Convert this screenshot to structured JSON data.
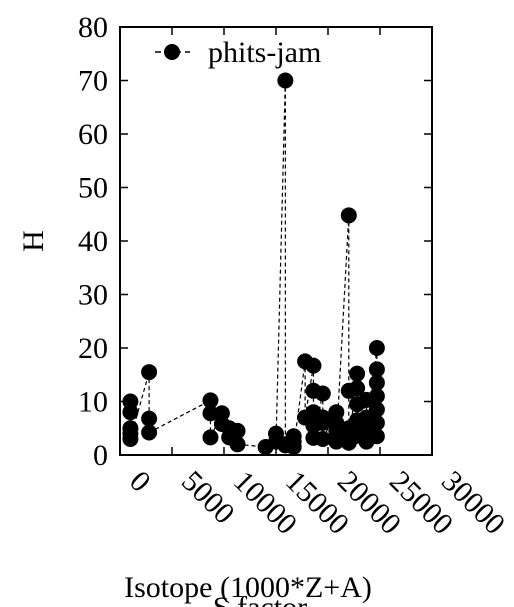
{
  "chart_data": {
    "type": "scatter",
    "title": "",
    "xlabel": "Isotope (1000*Z+A)",
    "xlabel_overlap": "S factor",
    "ylabel": "H",
    "xlim": [
      0,
      30000
    ],
    "ylim": [
      0,
      80
    ],
    "x_ticks": [
      0,
      5000,
      10000,
      15000,
      20000,
      25000,
      30000
    ],
    "x_tick_labels": [
      "0",
      "5000",
      "10000",
      "15000",
      "20000",
      "25000",
      "30000"
    ],
    "y_ticks": [
      0,
      10,
      20,
      30,
      40,
      50,
      60,
      70,
      80
    ],
    "y_tick_labels": [
      "0",
      "10",
      "20",
      "30",
      "40",
      "50",
      "60",
      "70",
      "80"
    ],
    "grid": false,
    "legend_position": "top-left",
    "series": [
      {
        "name": "phits-jam",
        "color": "#000000",
        "marker": "filled-circle",
        "line": "dashed",
        "points": [
          [
            1000,
            10
          ],
          [
            1000,
            8
          ],
          [
            1000,
            5
          ],
          [
            1000,
            4
          ],
          [
            1000,
            3
          ],
          [
            2800,
            15.5
          ],
          [
            2800,
            6.8
          ],
          [
            2800,
            4.2
          ],
          [
            8700,
            10.2
          ],
          [
            8700,
            7.8
          ],
          [
            8700,
            3.3
          ],
          [
            9800,
            7.8
          ],
          [
            9800,
            5.8
          ],
          [
            10500,
            5.0
          ],
          [
            10500,
            3.3
          ],
          [
            11300,
            4.5
          ],
          [
            11300,
            2.0
          ],
          [
            14000,
            1.5
          ],
          [
            15000,
            4.0
          ],
          [
            15000,
            2.5
          ],
          [
            15900,
            70
          ],
          [
            15900,
            2.0
          ],
          [
            15900,
            1.8
          ],
          [
            16700,
            3.5
          ],
          [
            16700,
            2.5
          ],
          [
            16700,
            1.5
          ],
          [
            17800,
            17.5
          ],
          [
            17800,
            7.0
          ],
          [
            18600,
            16.7
          ],
          [
            18600,
            12.0
          ],
          [
            18600,
            8.0
          ],
          [
            18600,
            5.5
          ],
          [
            18600,
            3.2
          ],
          [
            19500,
            11.5
          ],
          [
            19500,
            7.0
          ],
          [
            19500,
            6.0
          ],
          [
            19500,
            3.0
          ],
          [
            20800,
            8.0
          ],
          [
            20800,
            6.0
          ],
          [
            20800,
            4.5
          ],
          [
            20800,
            2.5
          ],
          [
            22000,
            44.8
          ],
          [
            22000,
            12.0
          ],
          [
            22000,
            5.0
          ],
          [
            22000,
            3.2
          ],
          [
            22000,
            2.3
          ],
          [
            22800,
            15.2
          ],
          [
            22800,
            12.5
          ],
          [
            22800,
            9.5
          ],
          [
            22800,
            6.5
          ],
          [
            22800,
            3.6
          ],
          [
            23700,
            10.3
          ],
          [
            23700,
            7.0
          ],
          [
            23700,
            5.0
          ],
          [
            23700,
            2.5
          ],
          [
            24700,
            20.0
          ],
          [
            24700,
            16.0
          ],
          [
            24700,
            13.5
          ],
          [
            24700,
            11.0
          ],
          [
            24700,
            8.5
          ],
          [
            24700,
            6.0
          ],
          [
            24700,
            3.5
          ]
        ]
      }
    ]
  }
}
